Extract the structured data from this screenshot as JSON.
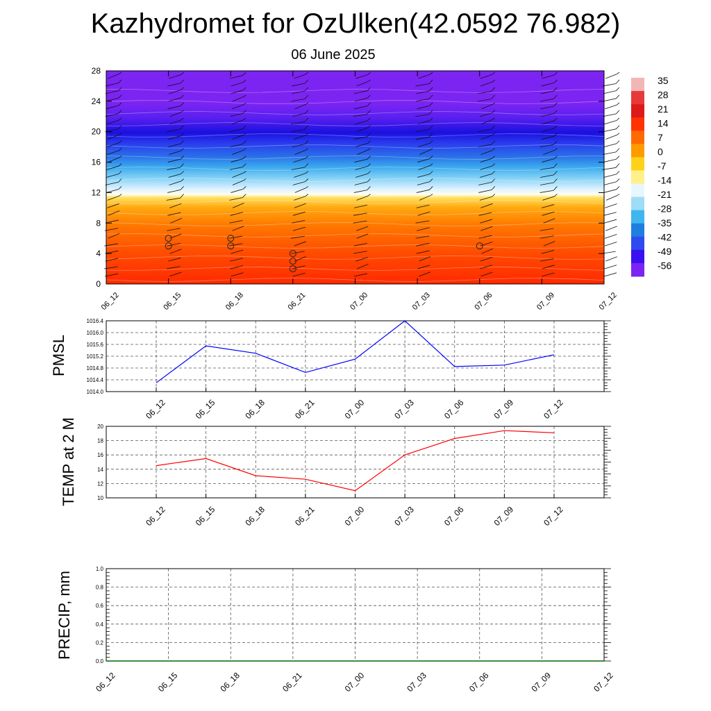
{
  "header": {
    "title": "Kazhydromet for OzUlken(42.0592 76.982)",
    "date": "06 June 2025"
  },
  "colors": {
    "pmsl_line": "#0000ff",
    "temp_line": "#ff0000",
    "precip_line": "#006400",
    "grid": "#555555"
  },
  "chart_data": [
    {
      "type": "heatmap",
      "name_hint": "time-height cross section with wind barbs",
      "x": [
        "06_12",
        "06_15",
        "06_18",
        "06_21",
        "07_00",
        "07_03",
        "07_06",
        "07_09",
        "07_12"
      ],
      "y_ticks": [
        0,
        4,
        8,
        12,
        16,
        20,
        24,
        28
      ],
      "ylim": [
        0,
        28
      ],
      "colorbar_labels": [
        "35",
        "28",
        "21",
        "14",
        "7",
        "0",
        "-7",
        "-14",
        "-21",
        "-28",
        "-35",
        "-42",
        "-49",
        "-56"
      ],
      "colorbar_colors": [
        "#f2b6b6",
        "#e63a3a",
        "#dd1a1a",
        "#ff3300",
        "#ff6a00",
        "#ff9a00",
        "#ffd21a",
        "#fff08a",
        "#e8f6ff",
        "#9fdcf5",
        "#3fb6ee",
        "#1e7fe0",
        "#2f4bf0",
        "#3b10f0",
        "#7c24f2"
      ],
      "calm_markers": [
        {
          "x": "06_15",
          "levels": [
            5,
            6
          ]
        },
        {
          "x": "06_18",
          "levels": [
            5,
            6
          ]
        },
        {
          "x": "06_21",
          "levels": [
            2,
            3,
            4
          ]
        },
        {
          "x": "07_06",
          "levels": [
            5
          ]
        }
      ]
    },
    {
      "type": "line",
      "ylabel": "PMSL",
      "x": [
        "06_12",
        "06_15",
        "06_18",
        "06_21",
        "07_00",
        "07_03",
        "07_06",
        "07_09",
        "07_12"
      ],
      "values": [
        1014.3,
        1015.55,
        1015.3,
        1014.65,
        1015.1,
        1016.4,
        1014.85,
        1014.9,
        1015.25
      ],
      "ylim": [
        1014.0,
        1016.4
      ],
      "y_ticks": [
        "1014.0",
        "1014.4",
        "1014.8",
        "1015.2",
        "1015.6",
        "1016.0",
        "1016.4"
      ],
      "grid": true
    },
    {
      "type": "line",
      "ylabel": "TEMP at 2 M",
      "x": [
        "06_12",
        "06_15",
        "06_18",
        "06_21",
        "07_00",
        "07_03",
        "07_06",
        "07_09",
        "07_12"
      ],
      "values": [
        14.5,
        15.5,
        13.1,
        12.6,
        11.0,
        16.0,
        18.3,
        19.4,
        19.1
      ],
      "ylim": [
        10,
        20
      ],
      "y_ticks": [
        "10",
        "12",
        "14",
        "16",
        "18",
        "20"
      ],
      "grid": true
    },
    {
      "type": "line",
      "ylabel": "PRECIP, mm",
      "x": [
        "06_12",
        "06_15",
        "06_18",
        "06_21",
        "07_00",
        "07_03",
        "07_06",
        "07_09",
        "07_12"
      ],
      "values": [
        0,
        0,
        0,
        0,
        0,
        0,
        0,
        0,
        0
      ],
      "ylim": [
        0,
        1.0
      ],
      "y_ticks": [
        "0.0",
        "0.2",
        "0.4",
        "0.6",
        "0.8",
        "1.0"
      ],
      "grid": true
    }
  ]
}
